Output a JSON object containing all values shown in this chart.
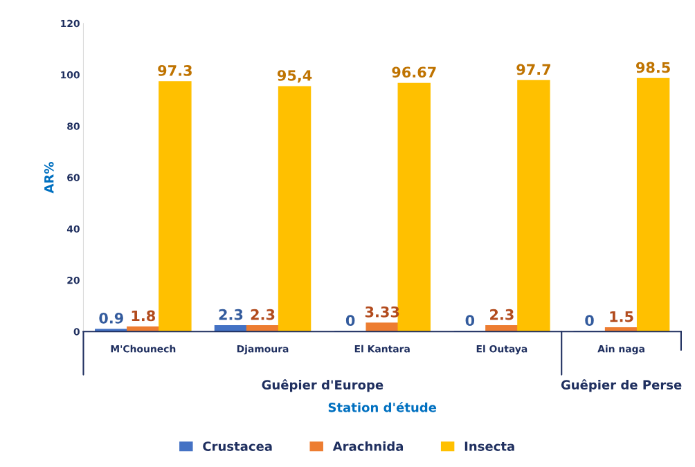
{
  "chart_data": {
    "type": "bar",
    "xlabel": "Station d'étude",
    "ylabel": "AR%",
    "categories": [
      "M'Chounech",
      "Djamoura",
      "El Kantara",
      "El Outaya",
      "Ain naga"
    ],
    "series": [
      {
        "name": "Crustacea",
        "color": "#4472c4",
        "values": [
          0.9,
          2.3,
          0,
          0,
          0
        ],
        "value_labels": [
          "0.9",
          "2.3",
          "0",
          "0",
          "0"
        ]
      },
      {
        "name": "Arachnida",
        "color": "#ed7d31",
        "values": [
          1.8,
          2.3,
          3.33,
          2.3,
          1.5
        ],
        "value_labels": [
          "1.8",
          "2.3",
          "3.33",
          "2.3",
          "1.5"
        ]
      },
      {
        "name": "Insecta",
        "color": "#ffc000",
        "values": [
          97.3,
          95.4,
          96.67,
          97.7,
          98.5
        ],
        "value_labels": [
          "97.3",
          "95,4",
          "96.67",
          "97.7",
          "98.5"
        ]
      }
    ],
    "annotations": [
      "Guêpier d'Europe",
      "Guêpier de Perse"
    ],
    "ylim": [
      0,
      120
    ],
    "yticks": [
      0,
      20,
      40,
      60,
      80,
      100,
      120
    ],
    "grid": false,
    "legend": "bottom"
  }
}
